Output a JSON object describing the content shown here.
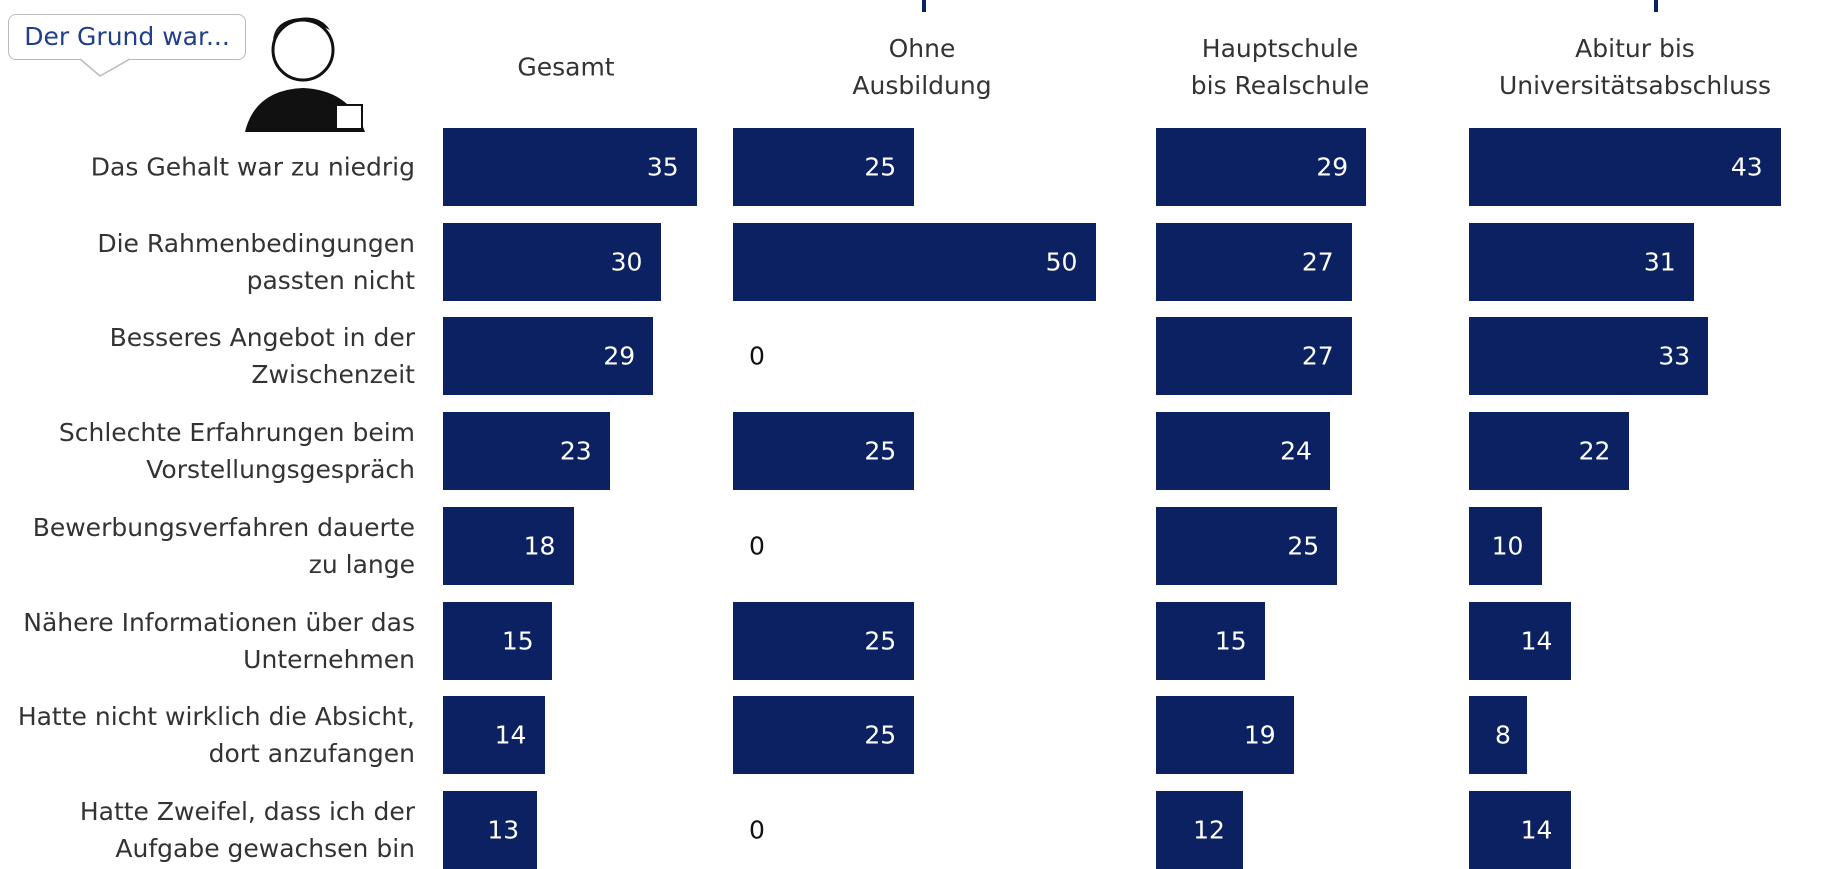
{
  "chart_data": {
    "type": "bar",
    "orientation": "horizontal",
    "annotation": "Der Grund war...",
    "categories": [
      "Das Gehalt war zu niedrig",
      "Die Rahmenbedingungen passten nicht",
      "Besseres Angebot in der Zwischenzeit",
      "Schlechte Erfahrungen beim Vorstellungsgespräch",
      "Bewerbungsverfahren dauerte zu lange",
      "Nähere Informationen über das Unternehmen",
      "Hatte nicht wirklich die Absicht, dort anzufangen",
      "Hatte Zweifel, dass ich der Aufgabe gewachsen bin"
    ],
    "series": [
      {
        "name": "Gesamt",
        "color": "#0b2161",
        "values": [
          35,
          30,
          29,
          23,
          18,
          15,
          14,
          13
        ]
      },
      {
        "name": "Ohne Ausbildung",
        "color": "#0b2161",
        "values": [
          25,
          50,
          0,
          25,
          0,
          25,
          25,
          0
        ]
      },
      {
        "name": "Hauptschule bis Realschule",
        "color": "#0b2161",
        "values": [
          29,
          27,
          27,
          24,
          25,
          15,
          19,
          12
        ]
      },
      {
        "name": "Abitur bis Universitätsabschluss",
        "color": "#0b2161",
        "values": [
          43,
          31,
          33,
          22,
          10,
          14,
          8,
          14
        ]
      }
    ]
  }
}
